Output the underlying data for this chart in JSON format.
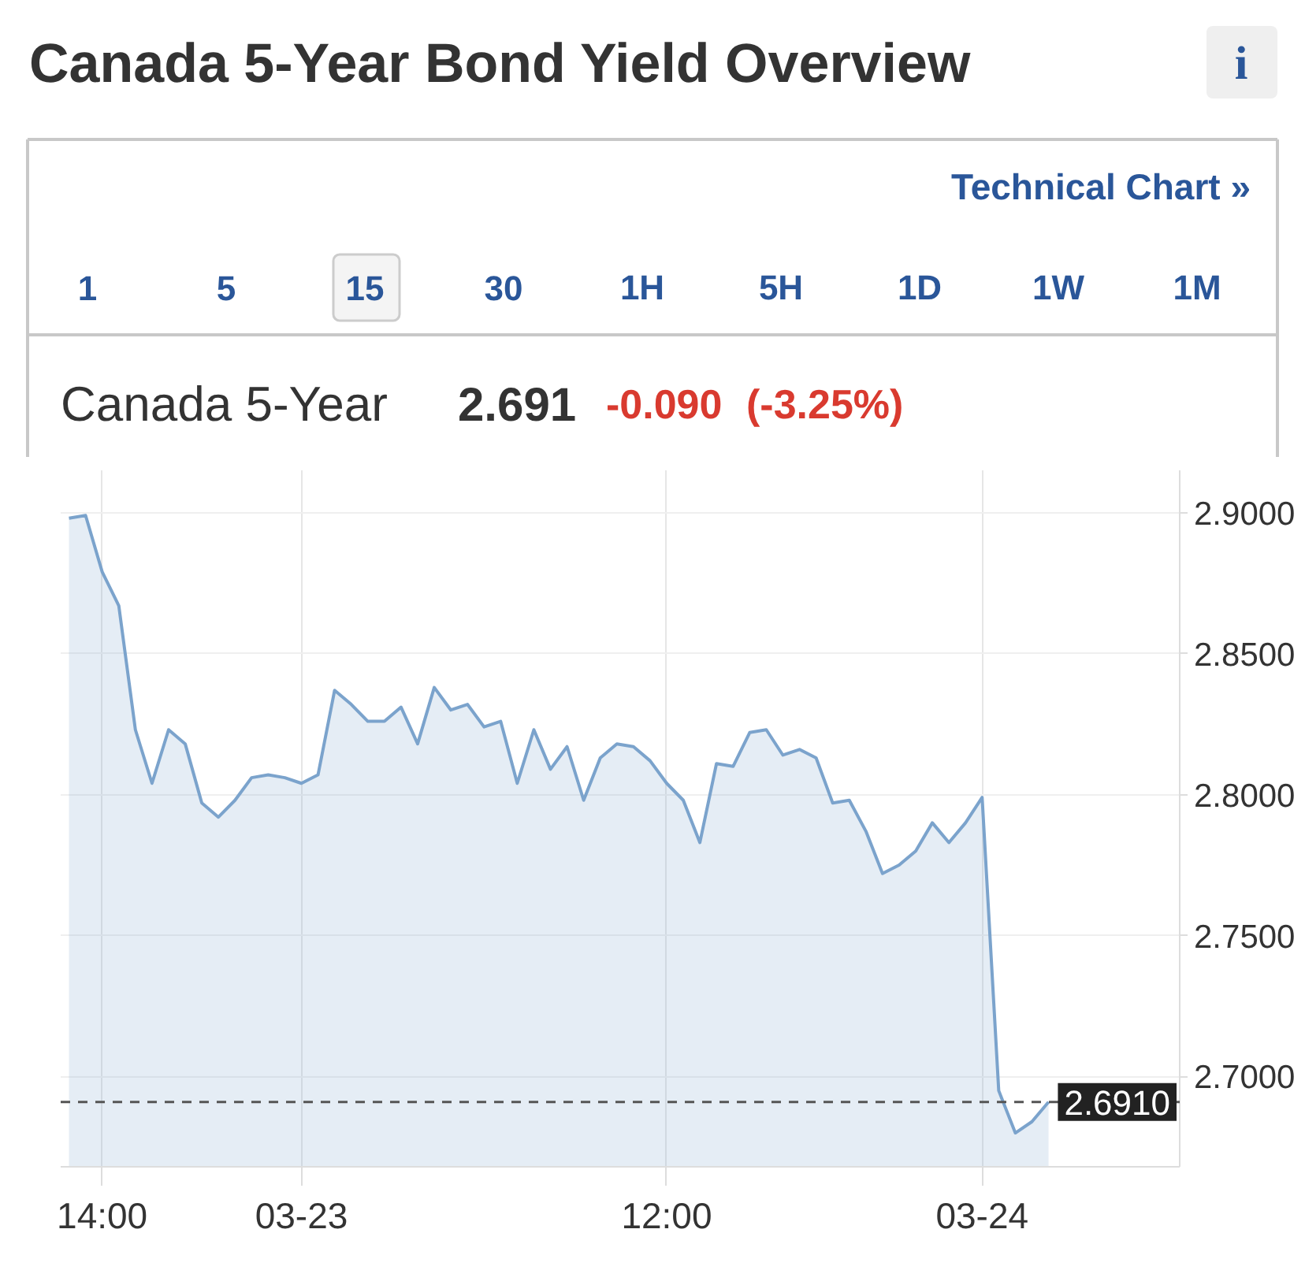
{
  "chart_data": {
    "type": "area",
    "title": "Canada 5-Year Bond Yield Overview",
    "subtitle": "Canada 5-Year",
    "annotations": [
      "i",
      "Technical Chart »",
      "1",
      "5",
      "15",
      "30",
      "1H",
      "5H",
      "1D",
      "1W",
      "1M",
      "2.691",
      "-0.090",
      "(-3.25%)"
    ],
    "categories": [
      null,
      null,
      "14:00",
      null,
      null,
      null,
      null,
      null,
      null,
      null,
      null,
      null,
      null,
      null,
      "03-23",
      null,
      null,
      null,
      null,
      null,
      null,
      null,
      null,
      null,
      null,
      null,
      null,
      null,
      null,
      null,
      null,
      null,
      null,
      null,
      null,
      null,
      "12:00",
      null,
      null,
      null,
      null,
      null,
      null,
      null,
      null,
      null,
      null,
      null,
      null,
      null,
      null,
      null,
      null,
      null,
      null,
      "03-24",
      null,
      null,
      null,
      null
    ],
    "series": [
      {
        "color": "#7ba3cc",
        "values": [
          2.898,
          2.899,
          2.879,
          2.867,
          2.823,
          2.804,
          2.823,
          2.818,
          2.797,
          2.792,
          2.798,
          2.806,
          2.807,
          2.806,
          2.804,
          2.807,
          2.837,
          2.832,
          2.826,
          2.826,
          2.831,
          2.818,
          2.838,
          2.83,
          2.832,
          2.824,
          2.826,
          2.804,
          2.823,
          2.809,
          2.817,
          2.798,
          2.813,
          2.818,
          2.817,
          2.812,
          2.804,
          2.798,
          2.783,
          2.811,
          2.81,
          2.822,
          2.823,
          2.814,
          2.816,
          2.813,
          2.797,
          2.798,
          2.787,
          2.772,
          2.775,
          2.78,
          2.79,
          2.783,
          2.79,
          2.799,
          2.695,
          2.68,
          2.684,
          2.691
        ]
      }
    ],
    "ylim": [
      2.668,
      2.915
    ],
    "yticks": [
      {
        "value": 2.7,
        "label": "2.7000"
      },
      {
        "value": 2.75,
        "label": "2.7500"
      },
      {
        "value": 2.8,
        "label": "2.8000"
      },
      {
        "value": 2.85,
        "label": "2.8500"
      },
      {
        "value": 2.9,
        "label": "2.9000"
      }
    ],
    "grid": true,
    "ref_lines": [
      {
        "axis": "y",
        "value": 2.691,
        "label": "2.6910",
        "color": "#555555",
        "line_style": "dashed"
      }
    ]
  }
}
